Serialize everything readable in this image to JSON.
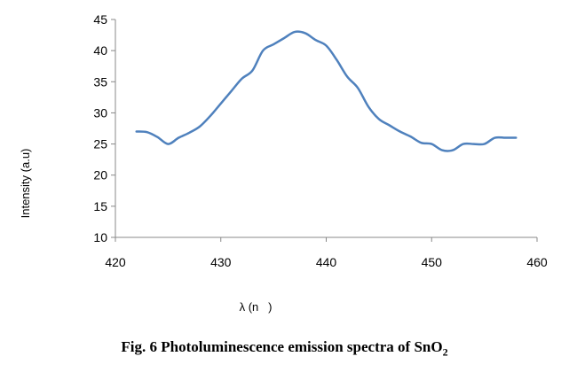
{
  "chart_data": {
    "type": "line",
    "xlabel": "λ (n   )",
    "ylabel": "Intensity (a.u)",
    "xlim": [
      420,
      460
    ],
    "ylim": [
      10,
      45
    ],
    "xticks": [
      420,
      430,
      440,
      450,
      460
    ],
    "yticks": [
      10,
      15,
      20,
      25,
      30,
      35,
      40,
      45
    ],
    "grid": false,
    "legend": "none",
    "series": [
      {
        "color": "#4f81bd",
        "x": [
          422,
          423,
          424,
          425,
          426,
          427,
          428,
          429,
          430,
          431,
          432,
          433,
          434,
          435,
          436,
          437,
          438,
          439,
          440,
          441,
          442,
          443,
          444,
          445,
          446,
          447,
          448,
          449,
          450,
          451,
          452,
          453,
          454,
          455,
          456,
          457,
          458
        ],
        "y": [
          27,
          26.9,
          26.1,
          25,
          26,
          26.8,
          27.8,
          29.5,
          31.5,
          33.5,
          35.5,
          36.8,
          40,
          41,
          42,
          43,
          42.8,
          41.7,
          40.8,
          38.5,
          35.8,
          34,
          31,
          29,
          28,
          27,
          26.2,
          25.2,
          25,
          24,
          24,
          25,
          25,
          25,
          26,
          26,
          26
        ]
      }
    ]
  },
  "caption": {
    "prefix": "Fig. 6  Photoluminescence emission spectra of SnO",
    "subscript": "2"
  }
}
